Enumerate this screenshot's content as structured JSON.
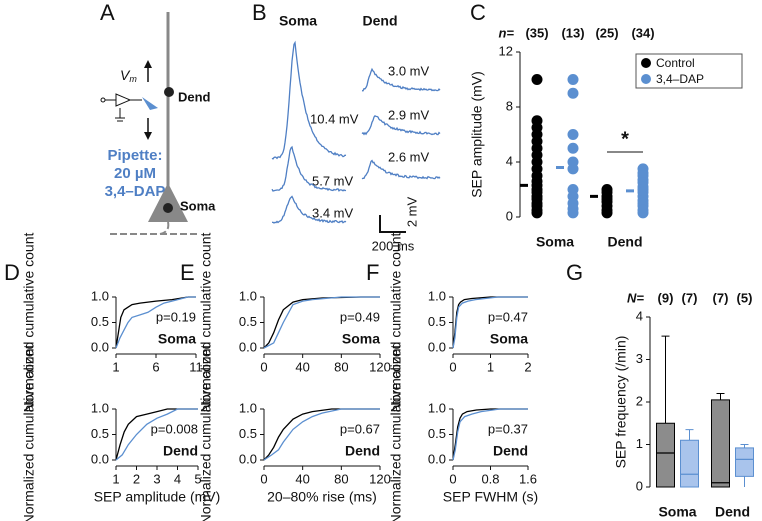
{
  "panel_a": {
    "letter": "A",
    "vm": "V",
    "vm_sub": "m",
    "dend": "Dend",
    "pipette": [
      "Pipette:",
      "20 µM",
      "3,4–DAP"
    ],
    "soma": "Soma"
  },
  "panel_b": {
    "letter": "B",
    "columns": [
      "Soma",
      "Dend"
    ],
    "soma_amplitudes": [
      "10.4 mV",
      "5.7 mV",
      "3.4 mV"
    ],
    "dend_amplitudes": [
      "3.0 mV",
      "2.9 mV",
      "2.6 mV"
    ],
    "scale_y": "2 mV",
    "scale_x": "200 ms"
  },
  "chart_data": [
    {
      "type": "strip",
      "panel": "C",
      "ylabel": "SEP amplitude (mV)",
      "ylim": [
        0,
        12
      ],
      "yticks": [
        0,
        4,
        8,
        12
      ],
      "categories": [
        "Soma",
        "Dend"
      ],
      "count_label": "n=",
      "annotation": "*",
      "legend": "upper right",
      "series": [
        {
          "name": "Control",
          "color": "#000000",
          "counts": [
            "(35)",
            "(25)"
          ],
          "values": [
            [
              10,
              7,
              6.5,
              6,
              5.5,
              5,
              4.5,
              4,
              3.5,
              3,
              2.6,
              2.3,
              2,
              1.8,
              1.5,
              1.3,
              1,
              0.8,
              0.5,
              0.3
            ],
            [
              2,
              1.8,
              1.5,
              1.3,
              1.1,
              0.8,
              0.5,
              0.3
            ]
          ],
          "means": [
            2.3,
            1.5
          ]
        },
        {
          "name": "3,4–DAP",
          "color": "#5b8fd0",
          "counts": [
            "(13)",
            "(34)"
          ],
          "values": [
            [
              10,
              9,
              6,
              5,
              4,
              3.5,
              2,
              1.5,
              1,
              0.6,
              0.3
            ],
            [
              3.5,
              3.2,
              3,
              2.7,
              2.5,
              2.2,
              2,
              1.8,
              1.5,
              1.2,
              1,
              0.8,
              0.5,
              0.3
            ]
          ],
          "means": [
            3.6,
            1.9
          ]
        }
      ]
    },
    {
      "type": "line",
      "panel": "D",
      "subtitle": "Soma",
      "annotation": "p=0.19",
      "ylabel": "Normalized cumulative count",
      "xlim": [
        1,
        11
      ],
      "xticks": [
        1,
        6,
        11
      ],
      "ylim": [
        0,
        1
      ],
      "yticks": [
        {
          "value": 0,
          "label": "0.0"
        },
        {
          "value": 0.5,
          "label": "0.5"
        },
        {
          "value": 1,
          "label": "1.0"
        }
      ],
      "series": [
        {
          "color": "#000000",
          "x": [
            1,
            1.3,
            1.6,
            2,
            2.5,
            3,
            4,
            5,
            6,
            8,
            10,
            11
          ],
          "values": [
            0,
            0.3,
            0.6,
            0.75,
            0.8,
            0.85,
            0.88,
            0.9,
            0.92,
            0.95,
            1,
            1
          ]
        },
        {
          "color": "#5b8fd0",
          "x": [
            1,
            1.5,
            2,
            2.5,
            3,
            4,
            5,
            6,
            7,
            8,
            10,
            11
          ],
          "values": [
            0,
            0.2,
            0.35,
            0.5,
            0.6,
            0.65,
            0.7,
            0.8,
            0.88,
            0.92,
            1,
            1
          ]
        }
      ]
    },
    {
      "type": "line",
      "subtitle": "Dend",
      "annotation": "p=0.008",
      "ylabel": "Normalized cumulative count",
      "xlabel": "SEP amplitude (mV)",
      "xlim": [
        1,
        5
      ],
      "xticks": [
        1,
        2,
        3,
        4,
        5
      ],
      "ylim": [
        0,
        1
      ],
      "yticks": [
        {
          "value": 0,
          "label": "0.0"
        },
        {
          "value": 0.5,
          "label": "0.5"
        },
        {
          "value": 1,
          "label": "1.0"
        }
      ],
      "series": [
        {
          "color": "#000000",
          "x": [
            1,
            1.2,
            1.4,
            1.6,
            2,
            2.5,
            3,
            3.5,
            5
          ],
          "values": [
            0,
            0.3,
            0.55,
            0.7,
            0.85,
            0.9,
            0.95,
            1,
            1
          ]
        },
        {
          "color": "#5b8fd0",
          "x": [
            1,
            1.3,
            1.6,
            2,
            2.5,
            3,
            3.5,
            4,
            5
          ],
          "values": [
            0,
            0.1,
            0.3,
            0.5,
            0.7,
            0.82,
            0.9,
            1,
            1
          ]
        }
      ]
    },
    {
      "type": "line",
      "panel": "E",
      "subtitle": "Soma",
      "annotation": "p=0.49",
      "ylabel": "Normalized cumulative count",
      "xlim": [
        0,
        120
      ],
      "xticks": [
        0,
        40,
        80,
        120
      ],
      "ylim": [
        0,
        1
      ],
      "yticks": [
        {
          "value": 0,
          "label": "0.0"
        },
        {
          "value": 0.5,
          "label": "0.5"
        },
        {
          "value": 1,
          "label": "1.0"
        }
      ],
      "series": [
        {
          "color": "#000000",
          "x": [
            0,
            5,
            10,
            15,
            20,
            30,
            40,
            60,
            100,
            120
          ],
          "values": [
            0,
            0.1,
            0.3,
            0.55,
            0.75,
            0.9,
            0.95,
            0.98,
            1,
            1
          ]
        },
        {
          "color": "#5b8fd0",
          "x": [
            0,
            10,
            15,
            20,
            30,
            40,
            50,
            80,
            120
          ],
          "values": [
            0,
            0.1,
            0.3,
            0.5,
            0.85,
            0.92,
            0.95,
            1,
            1
          ]
        }
      ]
    },
    {
      "type": "line",
      "subtitle": "Dend",
      "annotation": "p=0.67",
      "ylabel": "Normalized cumulative count",
      "xlabel": "20–80% rise (ms)",
      "xlim": [
        0,
        120
      ],
      "xticks": [
        0,
        40,
        80,
        120
      ],
      "ylim": [
        0,
        1
      ],
      "yticks": [
        {
          "value": 0,
          "label": "0.0"
        },
        {
          "value": 0.5,
          "label": "0.5"
        },
        {
          "value": 1,
          "label": "1.0"
        }
      ],
      "series": [
        {
          "color": "#000000",
          "x": [
            0,
            5,
            10,
            15,
            20,
            30,
            40,
            50,
            70,
            120
          ],
          "values": [
            0,
            0.1,
            0.25,
            0.45,
            0.6,
            0.8,
            0.9,
            0.95,
            1,
            1
          ]
        },
        {
          "color": "#5b8fd0",
          "x": [
            0,
            8,
            15,
            20,
            30,
            40,
            50,
            60,
            80,
            120
          ],
          "values": [
            0,
            0.1,
            0.2,
            0.35,
            0.6,
            0.75,
            0.85,
            0.92,
            1,
            1
          ]
        }
      ]
    },
    {
      "type": "line",
      "panel": "F",
      "subtitle": "Soma",
      "annotation": "p=0.47",
      "ylabel": "Normalized cumulative count",
      "xlim": [
        0,
        2
      ],
      "xticks": [
        0,
        1,
        2
      ],
      "ylim": [
        0,
        1
      ],
      "yticks": [
        {
          "value": 0,
          "label": "0.0"
        },
        {
          "value": 0.5,
          "label": "0.5"
        },
        {
          "value": 1,
          "label": "1.0"
        }
      ],
      "series": [
        {
          "color": "#000000",
          "x": [
            0,
            0.05,
            0.1,
            0.15,
            0.2,
            0.3,
            0.5,
            1,
            2
          ],
          "values": [
            0,
            0.3,
            0.7,
            0.85,
            0.9,
            0.95,
            0.97,
            1,
            1
          ]
        },
        {
          "color": "#5b8fd0",
          "x": [
            0,
            0.05,
            0.1,
            0.15,
            0.25,
            0.4,
            0.6,
            1.2,
            2
          ],
          "values": [
            0,
            0.2,
            0.6,
            0.8,
            0.88,
            0.92,
            0.95,
            1,
            1
          ]
        }
      ]
    },
    {
      "type": "line",
      "subtitle": "Dend",
      "annotation": "p=0.37",
      "ylabel": "Normalized cumulative count",
      "xlabel": "SEP FWHM (s)",
      "xlim": [
        0,
        1.6
      ],
      "xticks": [
        0,
        0.8,
        1.6
      ],
      "ylim": [
        0,
        1
      ],
      "yticks": [
        {
          "value": 0,
          "label": "0.0"
        },
        {
          "value": 0.5,
          "label": "0.5"
        },
        {
          "value": 1,
          "label": "1.0"
        }
      ],
      "series": [
        {
          "color": "#000000",
          "x": [
            0,
            0.05,
            0.1,
            0.15,
            0.2,
            0.3,
            0.5,
            0.8,
            1.6
          ],
          "values": [
            0,
            0.3,
            0.65,
            0.82,
            0.9,
            0.95,
            0.98,
            1,
            1
          ]
        },
        {
          "color": "#5b8fd0",
          "x": [
            0,
            0.05,
            0.1,
            0.15,
            0.25,
            0.4,
            0.6,
            1,
            1.6
          ],
          "values": [
            0,
            0.2,
            0.55,
            0.75,
            0.85,
            0.9,
            0.95,
            1,
            1
          ]
        }
      ]
    },
    {
      "type": "box",
      "panel": "G",
      "ylabel": "SEP frequency (/min)",
      "ylim": [
        0,
        4
      ],
      "yticks": [
        0,
        1,
        2,
        3,
        4
      ],
      "categories": [
        "Soma",
        "Dend"
      ],
      "count_label": "N=",
      "series": [
        {
          "color": "#000000",
          "fill": "#8c8c8c",
          "counts": [
            "(9)",
            "(7)"
          ],
          "boxes": [
            {
              "min": 0,
              "q1": 0,
              "median": 0.8,
              "q3": 1.5,
              "max": 3.55
            },
            {
              "min": 0,
              "q1": 0,
              "median": 0.1,
              "q3": 2.05,
              "max": 2.2
            }
          ]
        },
        {
          "color": "#5b8fd0",
          "fill": "#a9c4ec",
          "counts": [
            "(7)",
            "(5)"
          ],
          "boxes": [
            {
              "min": 0,
              "q1": 0,
              "median": 0.3,
              "q3": 1.1,
              "max": 1.35
            },
            {
              "min": 0,
              "q1": 0.25,
              "median": 0.65,
              "q3": 0.92,
              "max": 1.0
            }
          ]
        }
      ]
    }
  ]
}
